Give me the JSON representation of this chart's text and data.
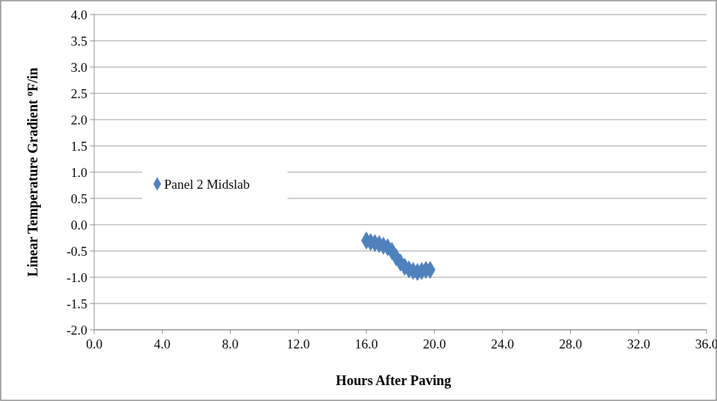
{
  "chart_data": {
    "type": "scatter",
    "xlabel": "Hours After Paving",
    "ylabel": "Linear Temperature Gradient $^{o}$F/in",
    "xlim": [
      0,
      36
    ],
    "xticks": [
      {
        "value": 0,
        "label": "0.0"
      },
      {
        "value": 4,
        "label": "4.0"
      },
      {
        "value": 8,
        "label": "8.0"
      },
      {
        "value": 12,
        "label": "12.0"
      },
      {
        "value": 16,
        "label": "16.0"
      },
      {
        "value": 20,
        "label": "20.0"
      },
      {
        "value": 24,
        "label": "24.0"
      },
      {
        "value": 28,
        "label": "28.0"
      },
      {
        "value": 32,
        "label": "32.0"
      },
      {
        "value": 36,
        "label": "36.0"
      }
    ],
    "ylim": [
      -2,
      4
    ],
    "yticks": [
      {
        "value": -2,
        "label": "-2.0"
      },
      {
        "value": -1.5,
        "label": "-1.5"
      },
      {
        "value": -1,
        "label": "-1.0"
      },
      {
        "value": -0.5,
        "label": "-0.5"
      },
      {
        "value": 0,
        "label": "0.0"
      },
      {
        "value": 0.5,
        "label": "0.5"
      },
      {
        "value": 1,
        "label": "1.0"
      },
      {
        "value": 1.5,
        "label": "1.5"
      },
      {
        "value": 2,
        "label": "2.0"
      },
      {
        "value": 2.5,
        "label": "2.5"
      },
      {
        "value": 3,
        "label": "3.0"
      },
      {
        "value": 3.5,
        "label": "3.5"
      },
      {
        "value": 4,
        "label": "4.0"
      }
    ],
    "grid": "y",
    "legend": "left",
    "marker": "diamond",
    "series": [
      {
        "name": "Panel 2 Midslab",
        "color": "#4f81bd",
        "x": [
          16,
          16.25,
          16.5,
          16.75,
          17,
          17.25,
          17.5,
          17.75,
          18,
          18.25,
          18.5,
          18.75,
          19,
          19.25,
          19.5,
          19.75
        ],
        "values": [
          -0.3,
          -0.33,
          -0.35,
          -0.37,
          -0.4,
          -0.43,
          -0.5,
          -0.62,
          -0.72,
          -0.8,
          -0.85,
          -0.88,
          -0.9,
          -0.88,
          -0.86,
          -0.86
        ]
      }
    ]
  }
}
